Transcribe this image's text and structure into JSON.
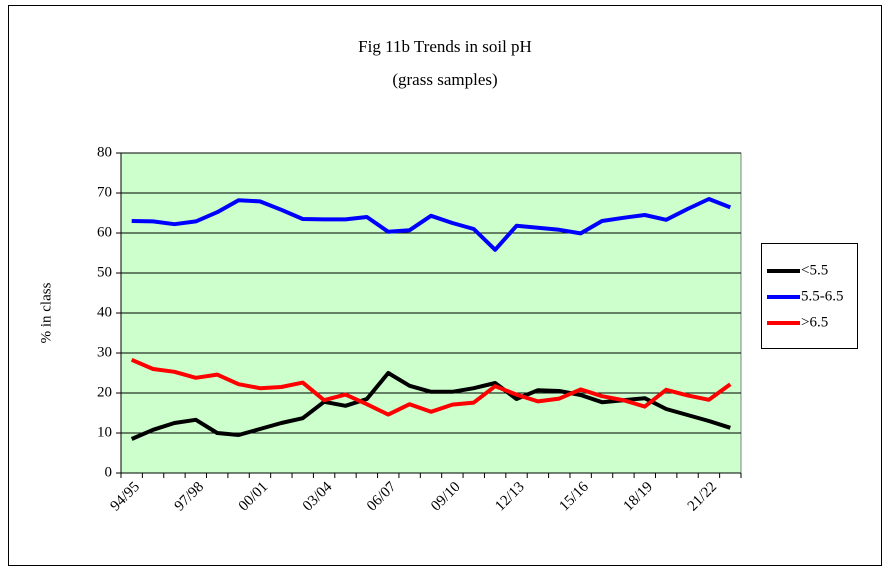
{
  "chart_data": {
    "type": "line",
    "title": "Fig 11b Trends in soil pH",
    "subtitle": "(grass samples)",
    "y_label": "% in class",
    "categories": [
      "94/95",
      null,
      null,
      "97/98",
      null,
      null,
      "00/01",
      null,
      null,
      "03/04",
      null,
      null,
      "06/07",
      null,
      null,
      "09/10",
      null,
      null,
      "12/13",
      null,
      null,
      "15/16",
      null,
      null,
      "18/19",
      null,
      null,
      "21/22",
      null
    ],
    "series": [
      {
        "name": "<5.5",
        "color": "#000000",
        "values": [
          8.5,
          10.8,
          12.5,
          13.3,
          10,
          9.5,
          11,
          12.5,
          13.7,
          17.8,
          16.8,
          18.5,
          25,
          21.8,
          20.3,
          20.3,
          21.2,
          22.5,
          18.5,
          20.7,
          20.5,
          19.5,
          17.7,
          18.2,
          18.7,
          16,
          14.5,
          13,
          11.3
        ]
      },
      {
        "name": "5.5-6.5",
        "color": "#0000ff",
        "values": [
          63,
          62.9,
          62.2,
          62.9,
          65.2,
          68.2,
          67.9,
          65.8,
          63.5,
          63.4,
          63.4,
          64,
          60.3,
          60.7,
          64.3,
          62.5,
          61,
          55.8,
          61.8,
          61.3,
          60.8,
          59.9,
          63,
          63.8,
          64.5,
          63.3,
          66,
          68.5,
          66.4
        ]
      },
      {
        "name": ">6.5",
        "color": "#ff0000",
        "values": [
          28.3,
          26,
          25.3,
          23.8,
          24.6,
          22.2,
          21.2,
          21.5,
          22.6,
          18.2,
          19.6,
          17.2,
          14.6,
          17.2,
          15.3,
          17.1,
          17.6,
          21.7,
          19.6,
          17.9,
          18.6,
          20.9,
          19.2,
          18.2,
          16.6,
          20.8,
          19.4,
          18.3,
          22.2
        ]
      }
    ],
    "ylim": [
      0,
      80
    ],
    "yticks": [
      0,
      10,
      20,
      30,
      40,
      50,
      60,
      70,
      80
    ],
    "grid": true,
    "legend": "right",
    "plot_background": "#ccffcc"
  }
}
